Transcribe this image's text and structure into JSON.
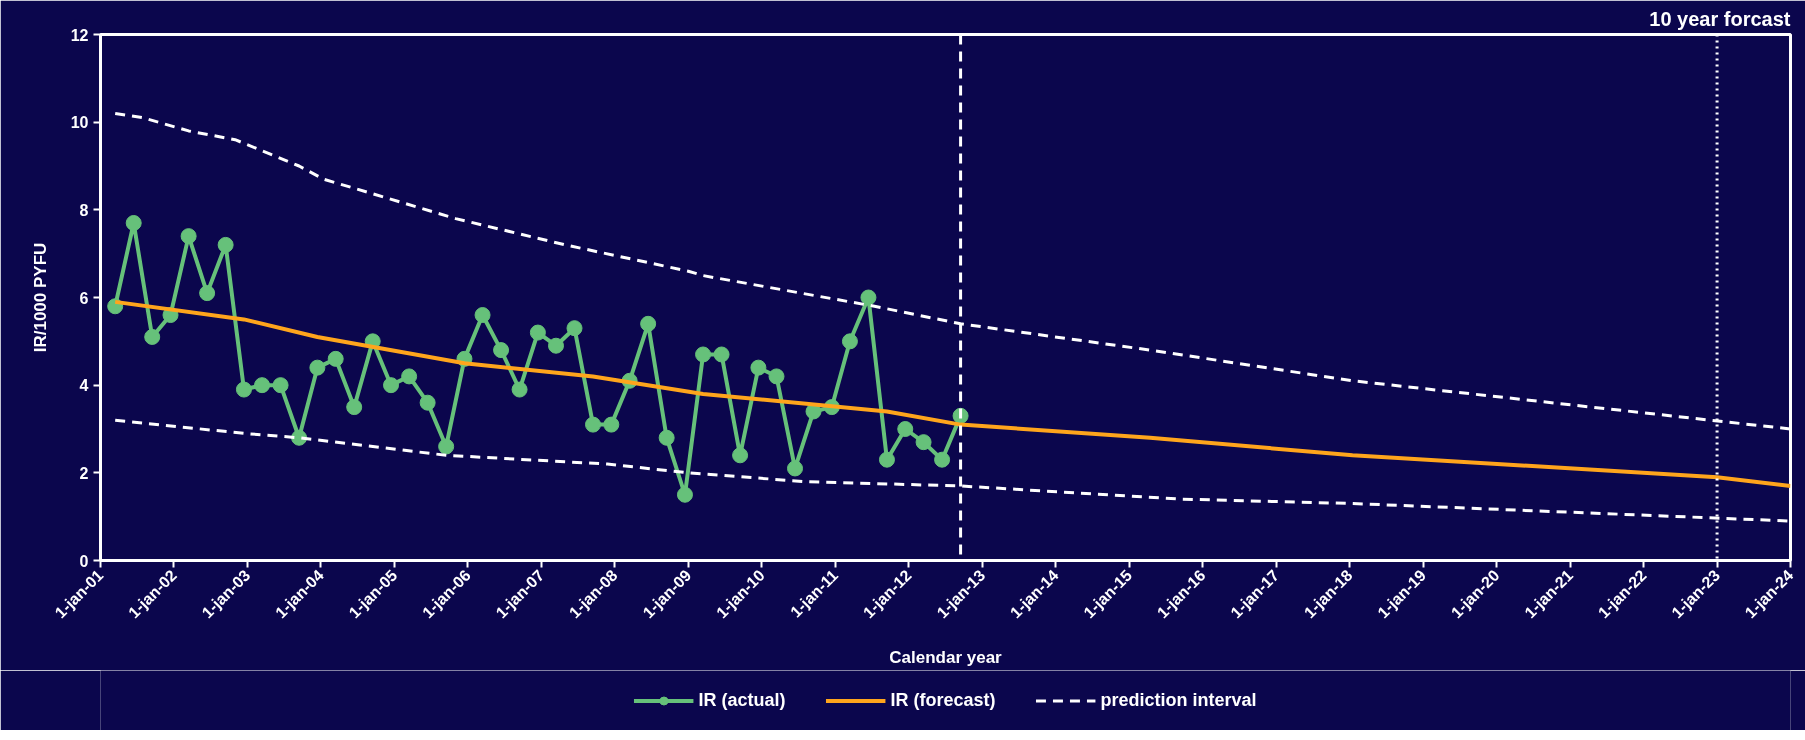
{
  "chart_data": {
    "type": "line",
    "xlabel": "Calendar year",
    "ylabel": "IR/1000 PYFU",
    "xlim": [
      "2001-01-01",
      "2024-01-01"
    ],
    "ylim": [
      0,
      12
    ],
    "yticks": [
      0,
      2,
      4,
      6,
      8,
      10,
      12
    ],
    "xticks": [
      {
        "value": "2001-01-01",
        "label": "1-jan-01"
      },
      {
        "value": "2002-01-01",
        "label": "1-jan-02"
      },
      {
        "value": "2003-01-01",
        "label": "1-jan-03"
      },
      {
        "value": "2004-01-01",
        "label": "1-jan-04"
      },
      {
        "value": "2005-01-01",
        "label": "1-jan-05"
      },
      {
        "value": "2006-01-01",
        "label": "1-jan-06"
      },
      {
        "value": "2007-01-01",
        "label": "1-jan-07"
      },
      {
        "value": "2008-01-01",
        "label": "1-jan-08"
      },
      {
        "value": "2009-01-01",
        "label": "1-jan-09"
      },
      {
        "value": "2010-01-01",
        "label": "1-jan-10"
      },
      {
        "value": "2011-01-01",
        "label": "1-jan-11"
      },
      {
        "value": "2012-01-01",
        "label": "1-jan-12"
      },
      {
        "value": "2013-01-01",
        "label": "1-jan-13"
      },
      {
        "value": "2014-01-01",
        "label": "1-jan-14"
      },
      {
        "value": "2015-01-01",
        "label": "1-jan-15"
      },
      {
        "value": "2016-01-01",
        "label": "1-jan-16"
      },
      {
        "value": "2017-01-01",
        "label": "1-jan-17"
      },
      {
        "value": "2018-01-01",
        "label": "1-jan-18"
      },
      {
        "value": "2019-01-01",
        "label": "1-jan-19"
      },
      {
        "value": "2020-01-01",
        "label": "1-jan-20"
      },
      {
        "value": "2021-01-01",
        "label": "1-jan-21"
      },
      {
        "value": "2022-01-01",
        "label": "1-jan-22"
      },
      {
        "value": "2023-01-01",
        "label": "1-jan-23"
      },
      {
        "value": "2024-01-01",
        "label": "1-jan-24"
      }
    ],
    "grid": false,
    "legend": "bottom",
    "series": [
      {
        "name": "IR (actual)",
        "color": "#66c17a",
        "marker": "circle",
        "line_style": "solid",
        "x": [
          "2001-03-15",
          "2001-06-15",
          "2001-09-15",
          "2001-12-15",
          "2002-03-15",
          "2002-06-15",
          "2002-09-15",
          "2002-12-15",
          "2003-03-15",
          "2003-06-15",
          "2003-09-15",
          "2003-12-15",
          "2004-03-15",
          "2004-06-15",
          "2004-09-15",
          "2004-12-15",
          "2005-03-15",
          "2005-06-15",
          "2005-09-15",
          "2005-12-15",
          "2006-03-15",
          "2006-06-15",
          "2006-09-15",
          "2006-12-15",
          "2007-03-15",
          "2007-06-15",
          "2007-09-15",
          "2007-12-15",
          "2008-03-15",
          "2008-06-15",
          "2008-09-15",
          "2008-12-15",
          "2009-03-15",
          "2009-06-15",
          "2009-09-15",
          "2009-12-15",
          "2010-03-15",
          "2010-06-15",
          "2010-09-15",
          "2010-12-15",
          "2011-03-15",
          "2011-06-15",
          "2011-09-15",
          "2011-12-15",
          "2012-03-15",
          "2012-06-15",
          "2012-09-15"
        ],
        "values": [
          5.8,
          7.7,
          5.1,
          5.6,
          7.4,
          6.1,
          7.2,
          3.9,
          4.0,
          4.0,
          2.8,
          4.4,
          4.6,
          3.5,
          5.0,
          4.0,
          4.2,
          3.6,
          2.6,
          4.6,
          5.6,
          4.8,
          3.9,
          5.2,
          4.9,
          5.3,
          3.1,
          3.1,
          4.1,
          5.4,
          2.8,
          1.5,
          4.7,
          4.7,
          2.4,
          4.4,
          4.2,
          2.1,
          3.4,
          3.5,
          5.0,
          6.0,
          2.3,
          3.0,
          2.7,
          2.3,
          3.3
        ]
      },
      {
        "name": "IR (forecast)",
        "color": "#ffa51c",
        "marker": "none",
        "line_style": "solid",
        "x": [
          "2001-03-15",
          "2002-12-15",
          "2003-12-15",
          "2005-12-15",
          "2007-09-15",
          "2009-03-15",
          "2011-09-15",
          "2012-09-15",
          "2015-04-15",
          "2018-01-15",
          "2023-01-01",
          "2024-01-01"
        ],
        "values": [
          5.9,
          5.5,
          5.1,
          4.5,
          4.2,
          3.8,
          3.4,
          3.1,
          2.8,
          2.4,
          1.9,
          1.7
        ]
      },
      {
        "name": "prediction interval",
        "color": "#ffffff",
        "marker": "none",
        "line_style": "dashed",
        "x": [
          "2001-03-15",
          "2001-08-01",
          "2002-03-15",
          "2002-11-01",
          "2003-09-15",
          "2004-01-15",
          "2005-11-01",
          "2006-08-01",
          "2007-05-01",
          "2009-01-01",
          "2009-03-15",
          "2011-07-15",
          "2012-09-15",
          "2015-04-15",
          "2018-01-15",
          "2024-01-01"
        ],
        "values": [
          10.2,
          10.1,
          9.8,
          9.6,
          9.0,
          8.7,
          7.8,
          7.5,
          7.2,
          6.6,
          6.5,
          5.8,
          5.4,
          4.8,
          4.1,
          3.0
        ]
      },
      {
        "color": "#ffffff",
        "marker": "none",
        "line_style": "dashed",
        "x": [
          "2001-03-15",
          "2002-12-15",
          "2003-09-15",
          "2005-09-15",
          "2007-11-25",
          "2009-01-01",
          "2010-08-01",
          "2012-09-15",
          "2015-09-15",
          "2018-01-15",
          "2024-01-01"
        ],
        "values": [
          3.2,
          2.9,
          2.8,
          2.4,
          2.2,
          2.0,
          1.8,
          1.7,
          1.4,
          1.3,
          0.9
        ]
      }
    ],
    "ref_lines": [
      {
        "axis": "x",
        "value": "2012-09-15",
        "color": "#ffffff",
        "line_style": "dashed"
      },
      {
        "axis": "x",
        "value": "2023-01-01",
        "color": "#ffffff",
        "line_style": "dotted",
        "label": "10 year forcast"
      }
    ]
  }
}
